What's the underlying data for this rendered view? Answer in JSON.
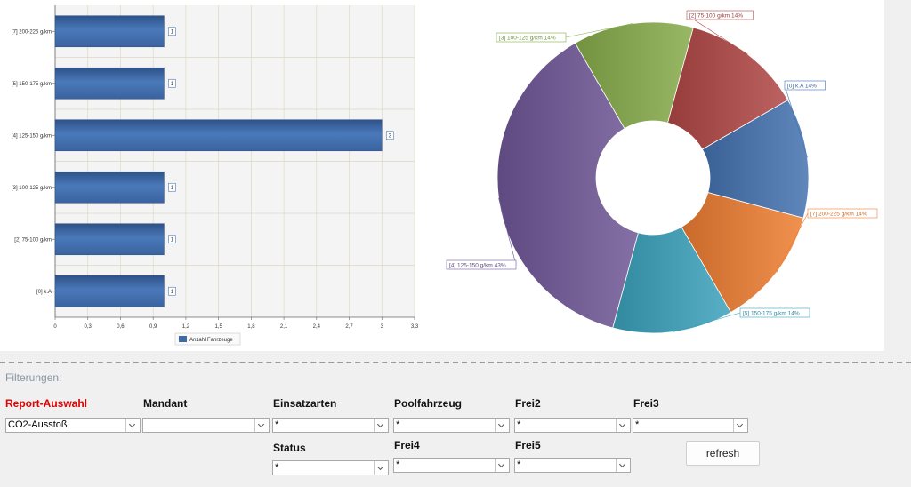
{
  "chart_data": [
    {
      "type": "bar",
      "orientation": "horizontal",
      "categories": [
        "[7] 200-225 g/km",
        "[5] 150-175 g/km",
        "[4] 125-150 g/km",
        "[3] 100-125 g/km",
        "[2] 75-100 g/km",
        "[0] k.A"
      ],
      "values": [
        1,
        1,
        3,
        1,
        1,
        1
      ],
      "data_labels": [
        "1",
        "1",
        "3",
        "1",
        "1",
        "1"
      ],
      "xlim": [
        0,
        3.3
      ],
      "xticks": [
        "0",
        "0,3",
        "0,6",
        "0,9",
        "1,2",
        "1,5",
        "1,8",
        "2,1",
        "2,4",
        "2,7",
        "3",
        "3,3"
      ],
      "legend": "Anzahl Fahrzeuge",
      "legend_position": "bottom",
      "grid": true,
      "color": "#3f6aa8"
    },
    {
      "type": "pie",
      "donut": true,
      "slices": [
        {
          "label": "[0] k.A 14%",
          "value": 1,
          "color": "#4472b0"
        },
        {
          "label": "[7] 200-225 g/km 14%",
          "value": 1,
          "color": "#ed7d31"
        },
        {
          "label": "[5] 150-175 g/km 14%",
          "value": 1,
          "color": "#3aa1bc"
        },
        {
          "label": "[4] 125-150 g/km 43%",
          "value": 3,
          "color": "#6f5796"
        },
        {
          "label": "[3] 100-125 g/km 14%",
          "value": 1,
          "color": "#86ac4a"
        },
        {
          "label": "[2] 75-100 g/km 14%",
          "value": 1,
          "color": "#b04745"
        }
      ]
    }
  ],
  "filters": {
    "title": "Filterungen:",
    "report": {
      "label": "Report-Auswahl",
      "value": "CO2-Ausstoß"
    },
    "mandant": {
      "label": "Mandant",
      "value": ""
    },
    "einsatzarten": {
      "label": "Einsatzarten",
      "value": "*"
    },
    "poolfahrzeug": {
      "label": "Poolfahrzeug",
      "value": "*"
    },
    "frei2": {
      "label": "Frei2",
      "value": "*"
    },
    "frei3": {
      "label": "Frei3",
      "value": "*"
    },
    "status": {
      "label": "Status",
      "value": "*"
    },
    "frei4": {
      "label": "Frei4",
      "value": "*"
    },
    "frei5": {
      "label": "Frei5",
      "value": "*"
    }
  },
  "buttons": {
    "refresh": "refresh"
  }
}
